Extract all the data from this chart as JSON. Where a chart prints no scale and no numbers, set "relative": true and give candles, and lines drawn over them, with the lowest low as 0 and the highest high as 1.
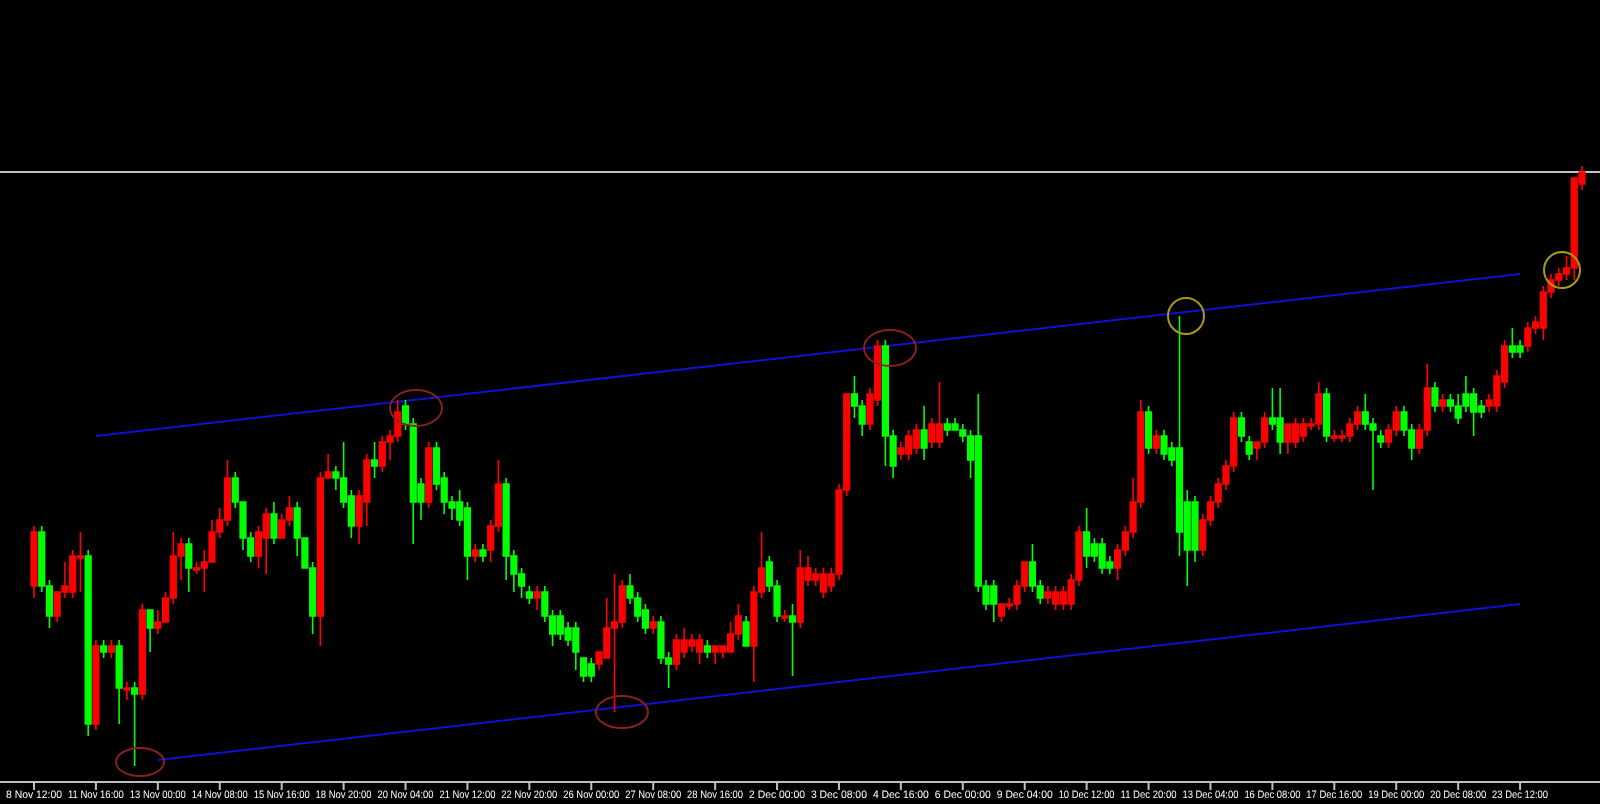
{
  "chart_data": {
    "type": "candlestick",
    "relative": true,
    "categories": [
      "8 Nov 12:00",
      null,
      null,
      null,
      null,
      null,
      null,
      null,
      "11 Nov 16:00",
      null,
      null,
      null,
      null,
      null,
      null,
      null,
      "13 Nov 00:00",
      null,
      null,
      null,
      null,
      null,
      null,
      null,
      "14 Nov 08:00",
      null,
      null,
      null,
      null,
      null,
      null,
      null,
      "15 Nov 16:00",
      null,
      null,
      null,
      null,
      null,
      null,
      null,
      "18 Nov 20:00",
      null,
      null,
      null,
      null,
      null,
      null,
      null,
      "20 Nov 04:00",
      null,
      null,
      null,
      null,
      null,
      null,
      null,
      "21 Nov 12:00",
      null,
      null,
      null,
      null,
      null,
      null,
      null,
      "22 Nov 20:00",
      null,
      null,
      null,
      null,
      null,
      null,
      null,
      "26 Nov 00:00",
      null,
      null,
      null,
      null,
      null,
      null,
      null,
      "27 Nov 08:00",
      null,
      null,
      null,
      null,
      null,
      null,
      null,
      "28 Nov 16:00",
      null,
      null,
      null,
      null,
      null,
      null,
      null,
      "2 Dec 00:00",
      null,
      null,
      null,
      null,
      null,
      null,
      null,
      "3 Dec 08:00",
      null,
      null,
      null,
      null,
      null,
      null,
      null,
      "4 Dec 16:00",
      null,
      null,
      null,
      null,
      null,
      null,
      null,
      "6 Dec 00:00",
      null,
      null,
      null,
      null,
      null,
      null,
      null,
      "9 Dec 04:00",
      null,
      null,
      null,
      null,
      null,
      null,
      null,
      "10 Dec 12:00",
      null,
      null,
      null,
      null,
      null,
      null,
      null,
      "11 Dec 20:00",
      null,
      null,
      null,
      null,
      null,
      null,
      null,
      "13 Dec 04:00",
      null,
      null,
      null,
      null,
      null,
      null,
      null,
      "16 Dec 08:00",
      null,
      null,
      null,
      null,
      null,
      null,
      null,
      "17 Dec 16:00",
      null,
      null,
      null,
      null,
      null,
      null,
      null,
      "19 Dec 00:00",
      null,
      null,
      null,
      null,
      null,
      null,
      null,
      "20 Dec 08:00",
      null,
      null,
      null,
      null,
      null,
      null,
      null,
      "23 Dec 12:00",
      null,
      null,
      null,
      null,
      null,
      null,
      null,
      null
    ],
    "ohlc": [
      [
        0.3,
        0.4,
        0.28,
        0.39
      ],
      [
        0.39,
        0.4,
        0.29,
        0.3
      ],
      [
        0.3,
        0.31,
        0.23,
        0.25
      ],
      [
        0.25,
        0.29,
        0.24,
        0.29
      ],
      [
        0.29,
        0.34,
        0.28,
        0.3
      ],
      [
        0.29,
        0.36,
        0.28,
        0.35
      ],
      [
        0.35,
        0.39,
        0.29,
        0.35
      ],
      [
        0.35,
        0.36,
        0.05,
        0.07
      ],
      [
        0.07,
        0.21,
        0.06,
        0.2
      ],
      [
        0.2,
        0.21,
        0.18,
        0.19
      ],
      [
        0.19,
        0.21,
        0.18,
        0.2
      ],
      [
        0.2,
        0.21,
        0.07,
        0.13
      ],
      [
        0.13,
        0.14,
        0.11,
        0.13
      ],
      [
        0.13,
        0.14,
        0.0,
        0.12
      ],
      [
        0.12,
        0.27,
        0.11,
        0.26
      ],
      [
        0.26,
        0.26,
        0.19,
        0.23
      ],
      [
        0.23,
        0.26,
        0.22,
        0.24
      ],
      [
        0.24,
        0.29,
        0.24,
        0.28
      ],
      [
        0.28,
        0.39,
        0.27,
        0.35
      ],
      [
        0.35,
        0.38,
        0.31,
        0.37
      ],
      [
        0.37,
        0.38,
        0.29,
        0.33
      ],
      [
        0.33,
        0.34,
        0.32,
        0.33
      ],
      [
        0.33,
        0.36,
        0.29,
        0.34
      ],
      [
        0.34,
        0.41,
        0.34,
        0.39
      ],
      [
        0.39,
        0.43,
        0.38,
        0.41
      ],
      [
        0.41,
        0.51,
        0.4,
        0.48
      ],
      [
        0.48,
        0.49,
        0.43,
        0.44
      ],
      [
        0.44,
        0.44,
        0.36,
        0.38
      ],
      [
        0.38,
        0.39,
        0.34,
        0.35
      ],
      [
        0.35,
        0.4,
        0.33,
        0.39
      ],
      [
        0.38,
        0.43,
        0.32,
        0.42
      ],
      [
        0.42,
        0.44,
        0.37,
        0.38
      ],
      [
        0.38,
        0.42,
        0.38,
        0.41
      ],
      [
        0.41,
        0.45,
        0.4,
        0.43
      ],
      [
        0.43,
        0.44,
        0.35,
        0.38
      ],
      [
        0.38,
        0.38,
        0.33,
        0.33
      ],
      [
        0.33,
        0.34,
        0.22,
        0.25
      ],
      [
        0.25,
        0.49,
        0.2,
        0.48
      ],
      [
        0.48,
        0.52,
        0.48,
        0.49
      ],
      [
        0.49,
        0.5,
        0.46,
        0.48
      ],
      [
        0.48,
        0.54,
        0.43,
        0.44
      ],
      [
        0.45,
        0.46,
        0.38,
        0.4
      ],
      [
        0.4,
        0.46,
        0.37,
        0.45
      ],
      [
        0.44,
        0.52,
        0.4,
        0.51
      ],
      [
        0.51,
        0.54,
        0.48,
        0.5
      ],
      [
        0.5,
        0.55,
        0.49,
        0.54
      ],
      [
        0.54,
        0.56,
        0.51,
        0.55
      ],
      [
        0.55,
        0.61,
        0.54,
        0.59
      ],
      [
        0.6,
        0.61,
        0.56,
        0.57
      ],
      [
        0.57,
        0.58,
        0.37,
        0.44
      ],
      [
        0.47,
        0.48,
        0.41,
        0.44
      ],
      [
        0.44,
        0.54,
        0.43,
        0.53
      ],
      [
        0.53,
        0.54,
        0.46,
        0.47
      ],
      [
        0.48,
        0.49,
        0.42,
        0.44
      ],
      [
        0.44,
        0.45,
        0.41,
        0.43
      ],
      [
        0.44,
        0.46,
        0.4,
        0.41
      ],
      [
        0.43,
        0.44,
        0.31,
        0.35
      ],
      [
        0.35,
        0.37,
        0.34,
        0.36
      ],
      [
        0.36,
        0.37,
        0.34,
        0.35
      ],
      [
        0.36,
        0.41,
        0.34,
        0.4
      ],
      [
        0.4,
        0.51,
        0.39,
        0.47
      ],
      [
        0.47,
        0.48,
        0.31,
        0.35
      ],
      [
        0.35,
        0.36,
        0.29,
        0.32
      ],
      [
        0.32,
        0.33,
        0.28,
        0.3
      ],
      [
        0.29,
        0.3,
        0.27,
        0.28
      ],
      [
        0.28,
        0.3,
        0.26,
        0.29
      ],
      [
        0.29,
        0.3,
        0.24,
        0.25
      ],
      [
        0.25,
        0.26,
        0.2,
        0.22
      ],
      [
        0.25,
        0.26,
        0.21,
        0.22
      ],
      [
        0.23,
        0.24,
        0.2,
        0.21
      ],
      [
        0.23,
        0.24,
        0.16,
        0.19
      ],
      [
        0.18,
        0.18,
        0.14,
        0.15
      ],
      [
        0.17,
        0.18,
        0.14,
        0.15
      ],
      [
        0.17,
        0.19,
        0.16,
        0.19
      ],
      [
        0.18,
        0.28,
        0.18,
        0.23
      ],
      [
        0.23,
        0.32,
        0.09,
        0.24
      ],
      [
        0.24,
        0.31,
        0.23,
        0.3
      ],
      [
        0.3,
        0.32,
        0.27,
        0.28
      ],
      [
        0.28,
        0.29,
        0.24,
        0.25
      ],
      [
        0.26,
        0.27,
        0.22,
        0.23
      ],
      [
        0.23,
        0.25,
        0.22,
        0.24
      ],
      [
        0.24,
        0.25,
        0.17,
        0.18
      ],
      [
        0.18,
        0.19,
        0.13,
        0.17
      ],
      [
        0.17,
        0.22,
        0.16,
        0.21
      ],
      [
        0.19,
        0.23,
        0.18,
        0.21
      ],
      [
        0.2,
        0.22,
        0.19,
        0.21
      ],
      [
        0.19,
        0.22,
        0.17,
        0.21
      ],
      [
        0.2,
        0.21,
        0.18,
        0.19
      ],
      [
        0.19,
        0.2,
        0.17,
        0.2
      ],
      [
        0.19,
        0.2,
        0.18,
        0.2
      ],
      [
        0.19,
        0.24,
        0.19,
        0.22
      ],
      [
        0.22,
        0.27,
        0.21,
        0.25
      ],
      [
        0.24,
        0.25,
        0.2,
        0.2
      ],
      [
        0.2,
        0.3,
        0.14,
        0.29
      ],
      [
        0.29,
        0.39,
        0.28,
        0.33
      ],
      [
        0.34,
        0.35,
        0.29,
        0.3
      ],
      [
        0.3,
        0.31,
        0.24,
        0.25
      ],
      [
        0.25,
        0.26,
        0.24,
        0.25
      ],
      [
        0.25,
        0.27,
        0.15,
        0.24
      ],
      [
        0.24,
        0.36,
        0.23,
        0.33
      ],
      [
        0.31,
        0.35,
        0.3,
        0.33
      ],
      [
        0.31,
        0.33,
        0.3,
        0.32
      ],
      [
        0.29,
        0.33,
        0.28,
        0.32
      ],
      [
        0.3,
        0.33,
        0.29,
        0.32
      ],
      [
        0.32,
        0.47,
        0.31,
        0.46
      ],
      [
        0.46,
        0.62,
        0.45,
        0.62
      ],
      [
        0.62,
        0.65,
        0.58,
        0.6
      ],
      [
        0.6,
        0.61,
        0.55,
        0.57
      ],
      [
        0.57,
        0.63,
        0.56,
        0.62
      ],
      [
        0.61,
        0.71,
        0.6,
        0.7
      ],
      [
        0.7,
        0.71,
        0.5,
        0.55
      ],
      [
        0.55,
        0.56,
        0.48,
        0.5
      ],
      [
        0.52,
        0.54,
        0.51,
        0.53
      ],
      [
        0.52,
        0.56,
        0.51,
        0.55
      ],
      [
        0.53,
        0.57,
        0.52,
        0.56
      ],
      [
        0.56,
        0.6,
        0.51,
        0.53
      ],
      [
        0.54,
        0.58,
        0.53,
        0.57
      ],
      [
        0.54,
        0.64,
        0.53,
        0.57
      ],
      [
        0.57,
        0.58,
        0.55,
        0.56
      ],
      [
        0.57,
        0.58,
        0.56,
        0.56
      ],
      [
        0.56,
        0.57,
        0.54,
        0.55
      ],
      [
        0.55,
        0.56,
        0.48,
        0.51
      ],
      [
        0.55,
        0.62,
        0.29,
        0.3
      ],
      [
        0.3,
        0.31,
        0.26,
        0.27
      ],
      [
        0.3,
        0.31,
        0.24,
        0.27
      ],
      [
        0.25,
        0.27,
        0.24,
        0.27
      ],
      [
        0.27,
        0.28,
        0.26,
        0.27
      ],
      [
        0.27,
        0.31,
        0.26,
        0.3
      ],
      [
        0.3,
        0.34,
        0.29,
        0.34
      ],
      [
        0.34,
        0.37,
        0.29,
        0.3
      ],
      [
        0.3,
        0.31,
        0.27,
        0.28
      ],
      [
        0.28,
        0.3,
        0.27,
        0.29
      ],
      [
        0.27,
        0.3,
        0.26,
        0.29
      ],
      [
        0.27,
        0.3,
        0.26,
        0.29
      ],
      [
        0.27,
        0.32,
        0.26,
        0.31
      ],
      [
        0.31,
        0.4,
        0.3,
        0.39
      ],
      [
        0.39,
        0.43,
        0.33,
        0.35
      ],
      [
        0.37,
        0.38,
        0.34,
        0.35
      ],
      [
        0.37,
        0.38,
        0.32,
        0.33
      ],
      [
        0.34,
        0.35,
        0.32,
        0.33
      ],
      [
        0.33,
        0.37,
        0.31,
        0.36
      ],
      [
        0.36,
        0.4,
        0.35,
        0.39
      ],
      [
        0.39,
        0.48,
        0.38,
        0.44
      ],
      [
        0.44,
        0.61,
        0.43,
        0.59
      ],
      [
        0.59,
        0.6,
        0.52,
        0.53
      ],
      [
        0.53,
        0.56,
        0.52,
        0.55
      ],
      [
        0.55,
        0.56,
        0.51,
        0.52
      ],
      [
        0.53,
        0.54,
        0.5,
        0.51
      ],
      [
        0.53,
        0.75,
        0.35,
        0.39
      ],
      [
        0.44,
        0.46,
        0.3,
        0.36
      ],
      [
        0.44,
        0.45,
        0.34,
        0.36
      ],
      [
        0.36,
        0.42,
        0.35,
        0.41
      ],
      [
        0.41,
        0.45,
        0.4,
        0.44
      ],
      [
        0.44,
        0.48,
        0.43,
        0.47
      ],
      [
        0.47,
        0.51,
        0.46,
        0.5
      ],
      [
        0.5,
        0.59,
        0.49,
        0.58
      ],
      [
        0.58,
        0.59,
        0.54,
        0.55
      ],
      [
        0.54,
        0.55,
        0.51,
        0.52
      ],
      [
        0.53,
        0.54,
        0.51,
        0.54
      ],
      [
        0.54,
        0.59,
        0.53,
        0.58
      ],
      [
        0.58,
        0.63,
        0.56,
        0.57
      ],
      [
        0.58,
        0.63,
        0.52,
        0.54
      ],
      [
        0.54,
        0.57,
        0.52,
        0.57
      ],
      [
        0.54,
        0.58,
        0.53,
        0.57
      ],
      [
        0.55,
        0.58,
        0.54,
        0.57
      ],
      [
        0.57,
        0.58,
        0.56,
        0.57
      ],
      [
        0.57,
        0.64,
        0.56,
        0.62
      ],
      [
        0.62,
        0.63,
        0.54,
        0.55
      ],
      [
        0.55,
        0.56,
        0.54,
        0.55
      ],
      [
        0.55,
        0.56,
        0.54,
        0.55
      ],
      [
        0.55,
        0.58,
        0.54,
        0.57
      ],
      [
        0.57,
        0.6,
        0.56,
        0.59
      ],
      [
        0.59,
        0.62,
        0.56,
        0.57
      ],
      [
        0.57,
        0.58,
        0.46,
        0.56
      ],
      [
        0.55,
        0.56,
        0.53,
        0.54
      ],
      [
        0.54,
        0.57,
        0.53,
        0.56
      ],
      [
        0.56,
        0.6,
        0.55,
        0.59
      ],
      [
        0.59,
        0.6,
        0.55,
        0.56
      ],
      [
        0.56,
        0.57,
        0.51,
        0.53
      ],
      [
        0.53,
        0.57,
        0.52,
        0.56
      ],
      [
        0.56,
        0.67,
        0.55,
        0.63
      ],
      [
        0.63,
        0.64,
        0.59,
        0.6
      ],
      [
        0.6,
        0.62,
        0.59,
        0.61
      ],
      [
        0.61,
        0.62,
        0.59,
        0.6
      ],
      [
        0.6,
        0.62,
        0.57,
        0.58
      ],
      [
        0.62,
        0.65,
        0.59,
        0.6
      ],
      [
        0.62,
        0.63,
        0.55,
        0.59
      ],
      [
        0.6,
        0.61,
        0.58,
        0.59
      ],
      [
        0.6,
        0.62,
        0.59,
        0.61
      ],
      [
        0.6,
        0.66,
        0.59,
        0.65
      ],
      [
        0.64,
        0.71,
        0.63,
        0.7
      ],
      [
        0.7,
        0.73,
        0.68,
        0.69
      ],
      [
        0.7,
        0.71,
        0.68,
        0.69
      ],
      [
        0.7,
        0.74,
        0.69,
        0.73
      ],
      [
        0.73,
        0.75,
        0.72,
        0.74
      ],
      [
        0.73,
        0.8,
        0.71,
        0.79
      ],
      [
        0.79,
        0.82,
        0.78,
        0.81
      ],
      [
        0.81,
        0.83,
        0.8,
        0.82
      ],
      [
        0.82,
        0.85,
        0.81,
        0.83
      ],
      [
        0.83,
        0.98,
        0.81,
        0.98
      ],
      [
        0.97,
        1.0,
        0.96,
        0.99
      ]
    ],
    "series": [
      {
        "type": "line",
        "x": [
          "11 Nov 16:00",
          "23 Dec 12:00"
        ],
        "values": [
          0.55,
          0.82
        ],
        "color": "#1010d0"
      },
      {
        "type": "line",
        "x": [
          "13 Nov 00:00",
          "23 Dec 12:00"
        ],
        "values": [
          0.01,
          0.27
        ],
        "color": "#1010d0"
      }
    ],
    "ref_lines": [
      {
        "axis": "y",
        "value": 0.99,
        "color": "#c0c0c0"
      }
    ]
  }
}
